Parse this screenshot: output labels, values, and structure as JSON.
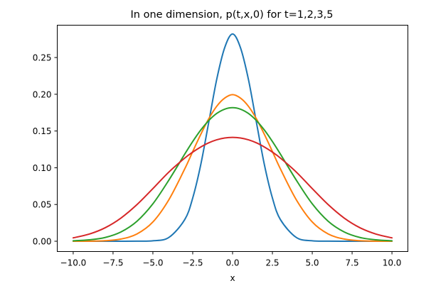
{
  "chart_data": {
    "type": "line",
    "title": "In one dimension, p(t,x,0) for t=1,2,3,5",
    "xlabel": "x",
    "ylabel": "",
    "xlim": [
      -11.0,
      11.0
    ],
    "ylim": [
      -0.014,
      0.294
    ],
    "xticks": [
      -10.0,
      -7.5,
      -5.0,
      -2.5,
      0.0,
      2.5,
      5.0,
      7.5,
      10.0
    ],
    "xtick_labels": [
      "−10.0",
      "−7.5",
      "−5.0",
      "−2.5",
      "0.0",
      "2.5",
      "5.0",
      "7.5",
      "10.0"
    ],
    "yticks": [
      0.0,
      0.05,
      0.1,
      0.15,
      0.2,
      0.25
    ],
    "ytick_labels": [
      "0.00",
      "0.05",
      "0.10",
      "0.15",
      "0.20",
      "0.25"
    ],
    "grid": false,
    "legend": null,
    "x": [
      -10,
      -9,
      -8,
      -7,
      -6,
      -5,
      -4,
      -3,
      -2.5,
      -2,
      -1.5,
      -1,
      -0.5,
      0,
      0.5,
      1,
      1.5,
      2,
      2.5,
      3,
      4,
      5,
      6,
      7,
      8,
      9,
      10
    ],
    "series": [
      {
        "color": "#1f77b4",
        "values": [
          0.0,
          0.0,
          0.0,
          0.0,
          0.0001,
          0.0006,
          0.0051,
          0.0295,
          0.0589,
          0.1038,
          0.1613,
          0.2197,
          0.2631,
          0.2821,
          0.2631,
          0.2197,
          0.1613,
          0.1038,
          0.0589,
          0.0295,
          0.0051,
          0.0006,
          0.0001,
          0.0,
          0.0,
          0.0,
          0.0
        ]
      },
      {
        "color": "#ff7f0e",
        "values": [
          0.0,
          0.0001,
          0.0007,
          0.003,
          0.0099,
          0.0262,
          0.0564,
          0.0985,
          0.1221,
          0.1452,
          0.1664,
          0.1835,
          0.1947,
          0.1995,
          0.1947,
          0.1835,
          0.1664,
          0.1452,
          0.1221,
          0.0985,
          0.0564,
          0.0262,
          0.0099,
          0.003,
          0.0007,
          0.0001,
          0.0
        ]
      },
      {
        "color": "#2ca02c",
        "values": [
          0.0006,
          0.0019,
          0.0051,
          0.0127,
          0.0272,
          0.0509,
          0.0831,
          0.1186,
          0.1357,
          0.1512,
          0.1641,
          0.1738,
          0.1797,
          0.1817,
          0.1797,
          0.1738,
          0.1641,
          0.1512,
          0.1357,
          0.1186,
          0.0831,
          0.0509,
          0.0272,
          0.0127,
          0.0051,
          0.0019,
          0.0006
        ]
      },
      {
        "color": "#d62728",
        "values": [
          0.0046,
          0.0097,
          0.0183,
          0.0316,
          0.0498,
          0.0716,
          0.0941,
          0.1132,
          0.1213,
          0.1282,
          0.1339,
          0.138,
          0.1405,
          0.1413,
          0.1405,
          0.138,
          0.1339,
          0.1282,
          0.1213,
          0.1132,
          0.0941,
          0.0716,
          0.0498,
          0.0316,
          0.0183,
          0.0097,
          0.0046
        ]
      }
    ]
  }
}
